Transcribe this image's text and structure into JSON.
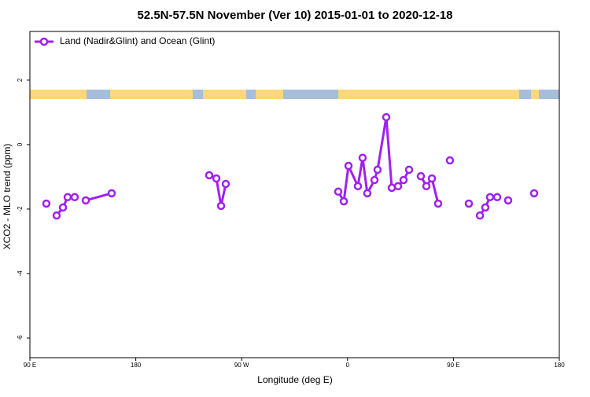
{
  "chart_data": {
    "type": "line",
    "title": "52.5N-57.5N November (Ver 10)   2015-01-01 to 2020-12-18",
    "x_label": "Longitude (deg E)",
    "y_label": "XCO2 - MLO trend (ppm)",
    "xlim": [
      90,
      540
    ],
    "ylim": [
      -6.61,
      3.51
    ],
    "xticks": [
      {
        "value": 90,
        "label": "90 E"
      },
      180,
      {
        "value": 270,
        "label": "90 W"
      },
      {
        "value": 360,
        "label": "0"
      },
      {
        "value": 450,
        "label": "90 E"
      },
      {
        "value": 540,
        "label": "180"
      }
    ],
    "yticks": [
      2,
      0,
      -2,
      -4,
      -6
    ],
    "legend_position": "top-left",
    "series": [
      {
        "name": "Land (Nadir&Glint) and Ocean (Glint)",
        "color": "#a020f0",
        "x": [
          104.0,
          null,
          112.7,
          118.1,
          122.1,
          128.1,
          null,
          137.5,
          159.5,
          null,
          242.4,
          248.5,
          252.5,
          256.5,
          null,
          352.1,
          356.8,
          360.8,
          368.8,
          372.8,
          376.8,
          382.9,
          385.5,
          392.9,
          397.6,
          402.9,
          407.6,
          412.3,
          null,
          422.3,
          427.0,
          431.7,
          437.0,
          null,
          447.0,
          null,
          463.1,
          null,
          472.5,
          477.1,
          481.1,
          487.2,
          null,
          496.5,
          null,
          518.6
        ],
        "values": [
          -1.83,
          null,
          -2.2,
          -1.95,
          -1.63,
          -1.63,
          null,
          -1.73,
          -1.51,
          null,
          -0.95,
          -1.05,
          -1.9,
          -1.22,
          null,
          -1.46,
          -1.76,
          -0.66,
          -1.29,
          -0.41,
          -1.51,
          -1.1,
          -0.78,
          0.85,
          -1.34,
          -1.29,
          -1.1,
          -0.78,
          null,
          -0.98,
          -1.29,
          -1.05,
          -1.83,
          null,
          -0.49,
          null,
          -1.83,
          null,
          -2.2,
          -1.95,
          -1.63,
          -1.63,
          null,
          -1.73,
          null,
          -1.51
        ]
      }
    ]
  }
}
